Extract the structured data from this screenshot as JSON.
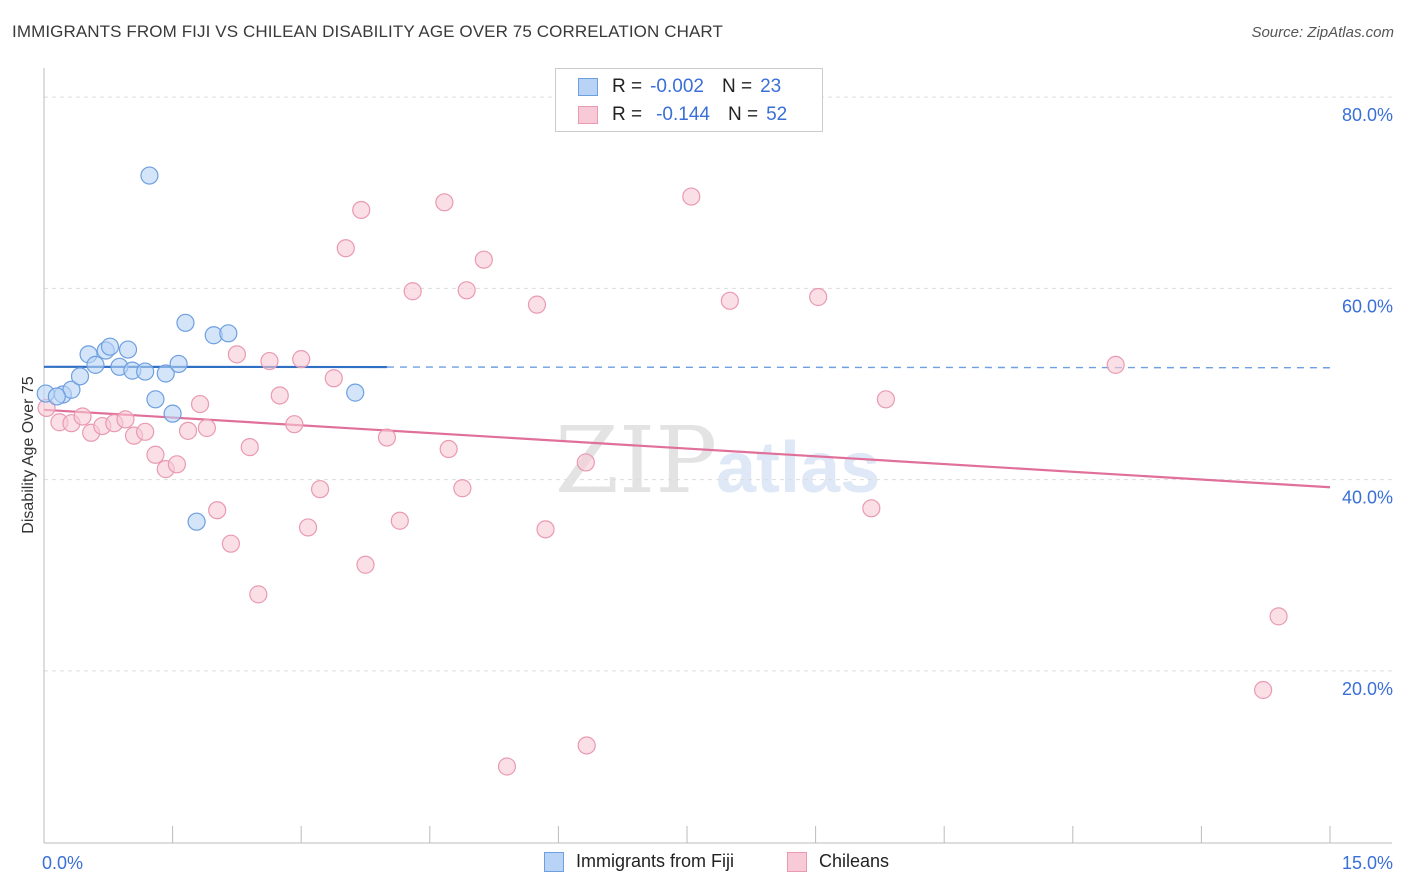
{
  "title": "IMMIGRANTS FROM FIJI VS CHILEAN DISABILITY AGE OVER 75 CORRELATION CHART",
  "source": "Source: ZipAtlas.com",
  "legend": {
    "rows": [
      {
        "r_label": "R =",
        "r_value": "-0.002",
        "n_label": "N =",
        "n_value": "23"
      },
      {
        "r_label": "R =",
        "r_value": "-0.144",
        "n_label": "N =",
        "n_value": "52"
      }
    ]
  },
  "watermark": {
    "zip": "ZIP",
    "atlas": "atlas"
  },
  "colors": {
    "fiji_fill": "#b8d3f5",
    "fiji_stroke": "#6e9fe0",
    "fiji_line": "#2f6fc4",
    "chile_fill": "#f8c9d6",
    "chile_stroke": "#e99ab2",
    "chile_line": "#e0709a",
    "axis_label": "#3a6fd8",
    "grid": "#dddddd"
  },
  "chart_data": {
    "type": "scatter",
    "title": "IMMIGRANTS FROM FIJI VS CHILEAN DISABILITY AGE OVER 75 CORRELATION CHART",
    "xlabel": "",
    "ylabel": "Disability Age Over 75",
    "xlim": [
      0,
      15
    ],
    "ylim": [
      2,
      82
    ],
    "x_tick_labels": [
      {
        "value": 0,
        "label": "0.0%"
      },
      {
        "value": 15,
        "label": "15.0%"
      }
    ],
    "x_minor_ticks": [
      1.5,
      3,
      4.5,
      6,
      7.5,
      9,
      10.5,
      12,
      13.5,
      15
    ],
    "y_ticks": [
      {
        "value": 20,
        "label": "20.0%"
      },
      {
        "value": 40,
        "label": "40.0%"
      },
      {
        "value": 60,
        "label": "60.0%"
      },
      {
        "value": 80,
        "label": "80.0%"
      }
    ],
    "grid": true,
    "legend_position": "top-center",
    "series": [
      {
        "name": "Immigrants from Fiji",
        "color": "#6e9fe0",
        "trend": {
          "x_start": 0,
          "x_solid_end": 4.0,
          "x_end": 15,
          "y_start": 51.8,
          "y_end": 51.7
        },
        "points": [
          {
            "x": 0.02,
            "y": 49.0
          },
          {
            "x": 0.22,
            "y": 48.9
          },
          {
            "x": 0.32,
            "y": 49.4
          },
          {
            "x": 0.42,
            "y": 50.8
          },
          {
            "x": 0.52,
            "y": 53.1
          },
          {
            "x": 0.6,
            "y": 52.0
          },
          {
            "x": 0.72,
            "y": 53.5
          },
          {
            "x": 0.77,
            "y": 53.9
          },
          {
            "x": 0.88,
            "y": 51.8
          },
          {
            "x": 0.98,
            "y": 53.6
          },
          {
            "x": 1.03,
            "y": 51.4
          },
          {
            "x": 1.18,
            "y": 51.3
          },
          {
            "x": 1.23,
            "y": 71.8
          },
          {
            "x": 1.3,
            "y": 48.4
          },
          {
            "x": 1.42,
            "y": 51.1
          },
          {
            "x": 1.5,
            "y": 46.9
          },
          {
            "x": 1.57,
            "y": 52.1
          },
          {
            "x": 1.65,
            "y": 56.4
          },
          {
            "x": 1.78,
            "y": 35.6
          },
          {
            "x": 1.98,
            "y": 55.1
          },
          {
            "x": 2.15,
            "y": 55.3
          },
          {
            "x": 3.63,
            "y": 49.1
          },
          {
            "x": 0.15,
            "y": 48.7
          }
        ]
      },
      {
        "name": "Chileans",
        "color": "#e99ab2",
        "trend": {
          "x_start": 0,
          "x_end": 15,
          "y_start": 47.3,
          "y_end": 39.2
        },
        "points": [
          {
            "x": 0.03,
            "y": 47.5
          },
          {
            "x": 0.18,
            "y": 46.0
          },
          {
            "x": 0.32,
            "y": 45.9
          },
          {
            "x": 0.45,
            "y": 46.6
          },
          {
            "x": 0.55,
            "y": 44.9
          },
          {
            "x": 0.68,
            "y": 45.6
          },
          {
            "x": 0.82,
            "y": 45.9
          },
          {
            "x": 0.95,
            "y": 46.3
          },
          {
            "x": 1.05,
            "y": 44.6
          },
          {
            "x": 1.18,
            "y": 45.0
          },
          {
            "x": 1.3,
            "y": 42.6
          },
          {
            "x": 1.42,
            "y": 41.1
          },
          {
            "x": 1.55,
            "y": 41.6
          },
          {
            "x": 1.68,
            "y": 45.1
          },
          {
            "x": 1.82,
            "y": 47.9
          },
          {
            "x": 1.9,
            "y": 45.4
          },
          {
            "x": 2.02,
            "y": 36.8
          },
          {
            "x": 2.18,
            "y": 33.3
          },
          {
            "x": 2.25,
            "y": 53.1
          },
          {
            "x": 2.4,
            "y": 43.4
          },
          {
            "x": 2.5,
            "y": 28.0
          },
          {
            "x": 2.63,
            "y": 52.4
          },
          {
            "x": 2.75,
            "y": 48.8
          },
          {
            "x": 2.92,
            "y": 45.8
          },
          {
            "x": 3.0,
            "y": 52.6
          },
          {
            "x": 3.08,
            "y": 35.0
          },
          {
            "x": 3.22,
            "y": 39.0
          },
          {
            "x": 3.38,
            "y": 50.6
          },
          {
            "x": 3.52,
            "y": 64.2
          },
          {
            "x": 3.7,
            "y": 68.2
          },
          {
            "x": 3.75,
            "y": 31.1
          },
          {
            "x": 4.0,
            "y": 44.4
          },
          {
            "x": 4.15,
            "y": 35.7
          },
          {
            "x": 4.3,
            "y": 59.7
          },
          {
            "x": 4.67,
            "y": 69.0
          },
          {
            "x": 4.72,
            "y": 43.2
          },
          {
            "x": 4.88,
            "y": 39.1
          },
          {
            "x": 4.93,
            "y": 59.8
          },
          {
            "x": 5.13,
            "y": 63.0
          },
          {
            "x": 5.4,
            "y": 10.0
          },
          {
            "x": 5.75,
            "y": 58.3
          },
          {
            "x": 5.85,
            "y": 34.8
          },
          {
            "x": 6.32,
            "y": 41.8
          },
          {
            "x": 6.33,
            "y": 12.2
          },
          {
            "x": 7.55,
            "y": 69.6
          },
          {
            "x": 8.0,
            "y": 58.7
          },
          {
            "x": 9.03,
            "y": 59.1
          },
          {
            "x": 9.65,
            "y": 37.0
          },
          {
            "x": 9.82,
            "y": 48.4
          },
          {
            "x": 12.5,
            "y": 52.0
          },
          {
            "x": 14.4,
            "y": 25.7
          },
          {
            "x": 14.22,
            "y": 18.0
          }
        ]
      }
    ]
  },
  "bottom_legend": [
    {
      "label": "Immigrants from Fiji"
    },
    {
      "label": "Chileans"
    }
  ]
}
